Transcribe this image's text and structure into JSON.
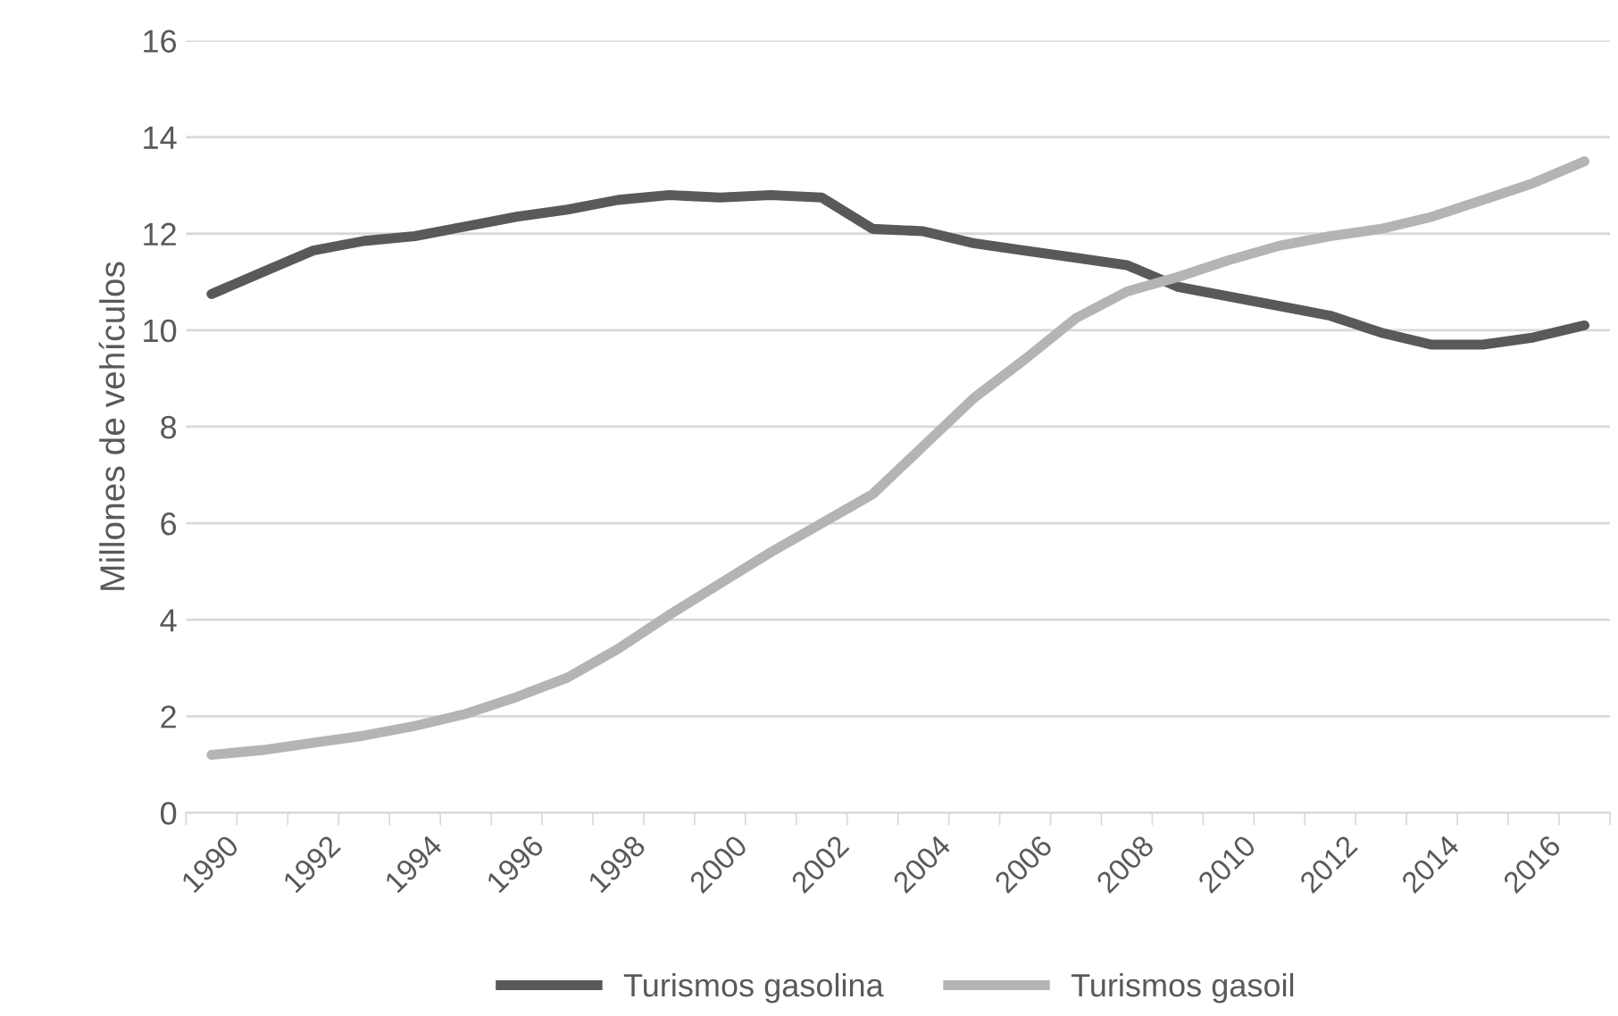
{
  "chart_data": {
    "type": "line",
    "ylabel": "Millones de vehículos",
    "categories": [
      "1990",
      null,
      "1992",
      null,
      "1994",
      null,
      "1996",
      null,
      "1998",
      null,
      "2000",
      null,
      "2002",
      null,
      "2004",
      null,
      "2006",
      null,
      "2008",
      null,
      "2010",
      null,
      "2012",
      null,
      "2014",
      null,
      "2016",
      null
    ],
    "series": [
      {
        "name": "Turismos gasolina",
        "color": "#595959",
        "values": [
          10.75,
          11.2,
          11.65,
          11.85,
          11.95,
          12.15,
          12.35,
          12.5,
          12.7,
          12.8,
          12.75,
          12.8,
          12.75,
          12.1,
          12.05,
          11.8,
          11.65,
          11.5,
          11.35,
          10.9,
          10.7,
          10.5,
          10.3,
          9.95,
          9.7,
          9.7,
          9.85,
          10.1
        ]
      },
      {
        "name": "Turismos gasoil",
        "color": "#b4b4b4",
        "values": [
          1.2,
          1.3,
          1.45,
          1.6,
          1.8,
          2.05,
          2.4,
          2.8,
          3.4,
          4.1,
          4.75,
          5.4,
          6.0,
          6.6,
          7.6,
          8.6,
          9.4,
          10.25,
          10.8,
          11.1,
          11.45,
          11.75,
          11.95,
          12.1,
          12.35,
          12.7,
          13.05,
          13.5
        ]
      }
    ],
    "ylim": [
      0,
      16
    ],
    "yticks": [
      0,
      2,
      4,
      6,
      8,
      10,
      12,
      14,
      16
    ],
    "grid": "y",
    "legend": "bottom",
    "marker": "none",
    "line_style": "solid"
  }
}
